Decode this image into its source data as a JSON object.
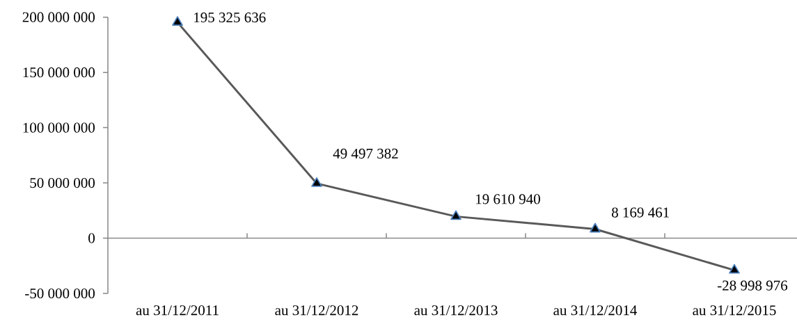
{
  "chart_data": {
    "type": "line",
    "categories": [
      "au 31/12/2011",
      "au 31/12/2012",
      "au 31/12/2013",
      "au 31/12/2014",
      "au 31/12/2015"
    ],
    "values": [
      195325636,
      49497382,
      19610940,
      8169461,
      -28998976
    ],
    "value_labels": [
      "195 325 636",
      "49 497 382",
      "19 610 940",
      "8 169 461",
      "-28 998 976"
    ],
    "color": "#595959",
    "marker": "triangle",
    "line_style": "solid",
    "ylim": [
      -50000000,
      200000000
    ],
    "yticks": [
      {
        "value": -50000000,
        "label": "-50 000 000"
      },
      0,
      {
        "value": 50000000,
        "label": "50 000 000"
      },
      {
        "value": 100000000,
        "label": "100 000 000"
      },
      {
        "value": 150000000,
        "label": "150 000 000"
      },
      {
        "value": 200000000,
        "label": "200 000 000"
      }
    ]
  }
}
